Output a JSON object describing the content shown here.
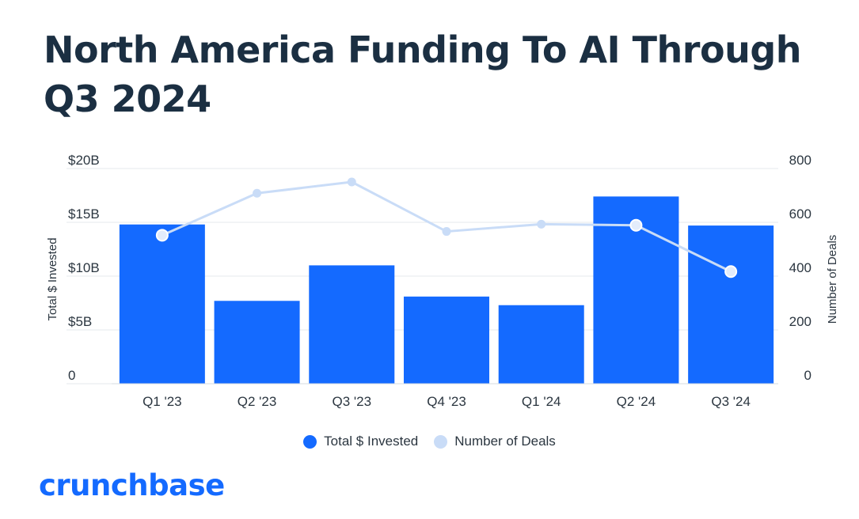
{
  "title": "North America Funding To AI Through Q3 2024",
  "brand": "crunchbase",
  "colors": {
    "bar": "#146aff",
    "line": "#c9dcf7",
    "grid": "#e4e8ee",
    "brand": "#146aff"
  },
  "legend": {
    "bar_label": "Total $ Invested",
    "line_label": "Number of Deals"
  },
  "chart_data": {
    "type": "bar",
    "categories": [
      "Q1 '23",
      "Q2 '23",
      "Q3 '23",
      "Q4 '23",
      "Q1 '24",
      "Q2 '24",
      "Q3 '24"
    ],
    "series": [
      {
        "name": "Total $ Invested",
        "type": "bar",
        "axis": "left",
        "values": [
          14.8,
          7.7,
          11.0,
          8.1,
          7.3,
          17.4,
          14.7
        ]
      },
      {
        "name": "Number of Deals",
        "type": "line",
        "axis": "right",
        "values": [
          552,
          708,
          750,
          566,
          593,
          589,
          417
        ]
      }
    ],
    "y_left": {
      "label": "Total $ Invested",
      "range": [
        0,
        20
      ],
      "ticks": [
        0,
        5,
        10,
        15,
        20
      ],
      "tick_labels": [
        "0",
        "$5B",
        "$10B",
        "$15B",
        "$20B"
      ]
    },
    "y_right": {
      "label": "Number of Deals",
      "range": [
        0,
        800
      ],
      "ticks": [
        0,
        200,
        400,
        600,
        800
      ],
      "tick_labels": [
        "0",
        "200",
        "400",
        "600",
        "800"
      ]
    },
    "grid": true,
    "legend_position": "bottom-center"
  }
}
